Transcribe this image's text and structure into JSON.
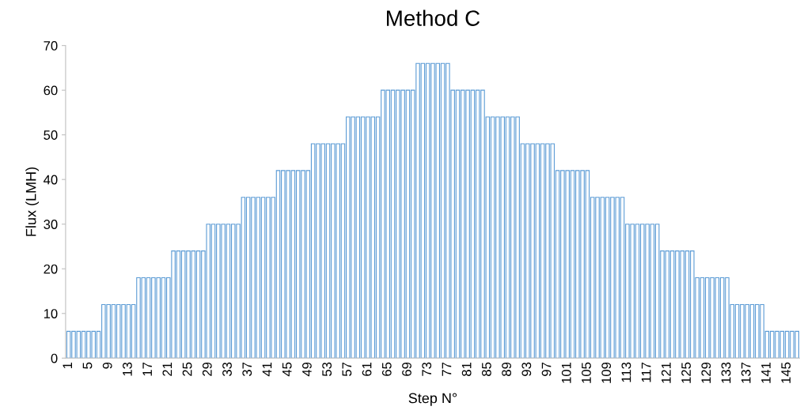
{
  "chart_data": {
    "type": "bar",
    "title": "Method C",
    "xlabel": "Step N°",
    "ylabel": "Flux (LMH)",
    "categories": [
      "1",
      null,
      null,
      null,
      "5",
      null,
      null,
      null,
      "9",
      null,
      null,
      null,
      "13",
      null,
      null,
      null,
      "17",
      null,
      null,
      null,
      "21",
      null,
      null,
      null,
      "25",
      null,
      null,
      null,
      "29",
      null,
      null,
      null,
      "33",
      null,
      null,
      null,
      "37",
      null,
      null,
      null,
      "41",
      null,
      null,
      null,
      "45",
      null,
      null,
      null,
      "49",
      null,
      null,
      null,
      "53",
      null,
      null,
      null,
      "57",
      null,
      null,
      null,
      "61",
      null,
      null,
      null,
      "65",
      null,
      null,
      null,
      "69",
      null,
      null,
      null,
      "73",
      null,
      null,
      null,
      "77",
      null,
      null,
      null,
      "81",
      null,
      null,
      null,
      "85",
      null,
      null,
      null,
      "89",
      null,
      null,
      null,
      "93",
      null,
      null,
      null,
      "97",
      null,
      null,
      null,
      "101",
      null,
      null,
      null,
      "105",
      null,
      null,
      null,
      "109",
      null,
      null,
      null,
      "113",
      null,
      null,
      null,
      "117",
      null,
      null,
      null,
      "121",
      null,
      null,
      null,
      "125",
      null,
      null,
      null,
      "129",
      null,
      null,
      null,
      "133",
      null,
      null,
      null,
      "137",
      null,
      null,
      null,
      "141",
      null,
      null,
      null,
      "145",
      null,
      null
    ],
    "values": [
      6,
      6,
      6,
      6,
      6,
      6,
      6,
      12,
      12,
      12,
      12,
      12,
      12,
      12,
      18,
      18,
      18,
      18,
      18,
      18,
      18,
      24,
      24,
      24,
      24,
      24,
      24,
      24,
      30,
      30,
      30,
      30,
      30,
      30,
      30,
      36,
      36,
      36,
      36,
      36,
      36,
      36,
      42,
      42,
      42,
      42,
      42,
      42,
      42,
      48,
      48,
      48,
      48,
      48,
      48,
      48,
      54,
      54,
      54,
      54,
      54,
      54,
      54,
      60,
      60,
      60,
      60,
      60,
      60,
      60,
      66,
      66,
      66,
      66,
      66,
      66,
      66,
      60,
      60,
      60,
      60,
      60,
      60,
      60,
      54,
      54,
      54,
      54,
      54,
      54,
      54,
      48,
      48,
      48,
      48,
      48,
      48,
      48,
      42,
      42,
      42,
      42,
      42,
      42,
      42,
      36,
      36,
      36,
      36,
      36,
      36,
      36,
      30,
      30,
      30,
      30,
      30,
      30,
      30,
      24,
      24,
      24,
      24,
      24,
      24,
      24,
      18,
      18,
      18,
      18,
      18,
      18,
      18,
      12,
      12,
      12,
      12,
      12,
      12,
      12,
      6,
      6,
      6,
      6,
      6,
      6,
      6
    ],
    "color": "#5b9bd5",
    "ylim": [
      0,
      70
    ],
    "yticks": [
      0,
      10,
      20,
      30,
      40,
      50,
      60,
      70
    ],
    "grid": false
  }
}
